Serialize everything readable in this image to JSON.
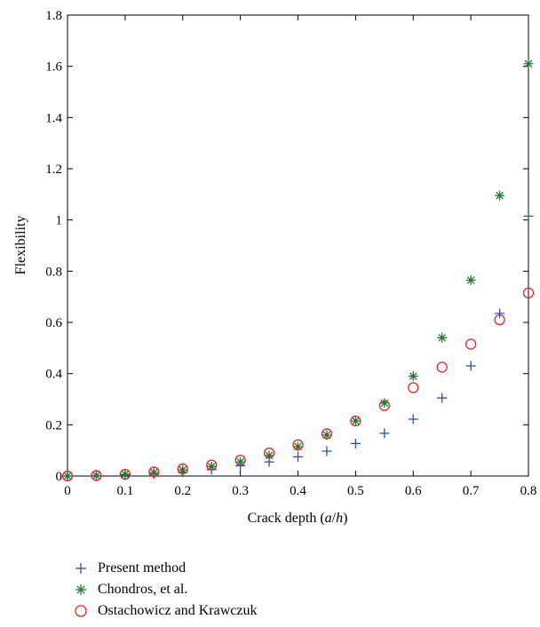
{
  "chart_data": {
    "type": "scatter",
    "xlabel_prefix": "Crack depth (",
    "xlabel_var": "a",
    "xlabel_sep": "/",
    "xlabel_var2": "h",
    "xlabel_suffix": ")",
    "ylabel": "Flexibility",
    "xlim": [
      0,
      0.8
    ],
    "ylim": [
      0,
      1.8
    ],
    "xticks": [
      "0",
      "0.1",
      "0.2",
      "0.3",
      "0.4",
      "0.5",
      "0.6",
      "0.7",
      "0.8"
    ],
    "yticks": [
      "0",
      "0.2",
      "0.4",
      "0.6",
      "0.8",
      "1",
      "1.2",
      "1.4",
      "1.6",
      "1.8"
    ],
    "grid": false,
    "legend_position": "bottom",
    "x": [
      0,
      0.05,
      0.1,
      0.15,
      0.2,
      0.25,
      0.3,
      0.35,
      0.4,
      0.45,
      0.5,
      0.55,
      0.6,
      0.65,
      0.7,
      0.75,
      0.8
    ],
    "series": [
      {
        "name": "Present method",
        "marker": "plus",
        "color": "#2c4f9e",
        "values": [
          0,
          0.001,
          0.003,
          0.008,
          0.015,
          0.025,
          0.04,
          0.055,
          0.075,
          0.097,
          0.127,
          0.167,
          0.222,
          0.305,
          0.43,
          0.635,
          1.015
        ]
      },
      {
        "name": "Chondros, et al.",
        "marker": "asterisk",
        "color": "#1e7a38",
        "values": [
          0,
          0.002,
          0.007,
          0.014,
          0.024,
          0.037,
          0.055,
          0.08,
          0.115,
          0.16,
          0.215,
          0.285,
          0.39,
          0.54,
          0.765,
          1.095,
          1.61
        ]
      },
      {
        "name": "Ostachowicz and Krawczuk",
        "marker": "circle",
        "color": "#e02828",
        "values": [
          0,
          0.002,
          0.007,
          0.016,
          0.028,
          0.043,
          0.062,
          0.09,
          0.122,
          0.165,
          0.215,
          0.275,
          0.345,
          0.425,
          0.515,
          0.61,
          0.715
        ]
      }
    ]
  }
}
